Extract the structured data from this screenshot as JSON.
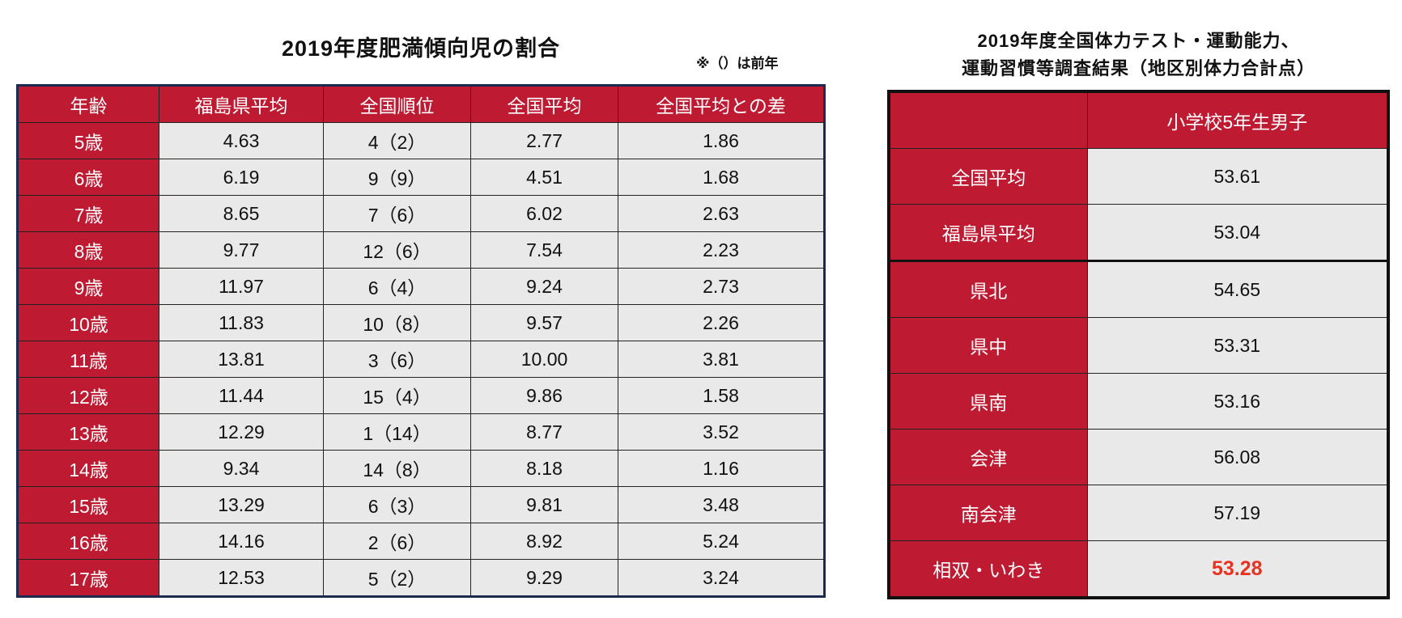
{
  "obesity": {
    "title": "2019年度肥満傾向児の割合",
    "note": "※（）は前年",
    "headers": [
      "年齢",
      "福島県平均",
      "全国順位",
      "全国平均",
      "全国平均との差"
    ],
    "rows": [
      [
        "5歳",
        "4.63",
        "4（2）",
        "2.77",
        "1.86"
      ],
      [
        "6歳",
        "6.19",
        "9（9）",
        "4.51",
        "1.68"
      ],
      [
        "7歳",
        "8.65",
        "7（6）",
        "6.02",
        "2.63"
      ],
      [
        "8歳",
        "9.77",
        "12（6）",
        "7.54",
        "2.23"
      ],
      [
        "9歳",
        "11.97",
        "6（4）",
        "9.24",
        "2.73"
      ],
      [
        "10歳",
        "11.83",
        "10（8）",
        "9.57",
        "2.26"
      ],
      [
        "11歳",
        "13.81",
        "3（6）",
        "10.00",
        "3.81"
      ],
      [
        "12歳",
        "11.44",
        "15（4）",
        "9.86",
        "1.58"
      ],
      [
        "13歳",
        "12.29",
        "1（14）",
        "8.77",
        "3.52"
      ],
      [
        "14歳",
        "9.34",
        "14（8）",
        "8.18",
        "1.16"
      ],
      [
        "15歳",
        "13.29",
        "6（3）",
        "9.81",
        "3.48"
      ],
      [
        "16歳",
        "14.16",
        "2（6）",
        "8.92",
        "5.24"
      ],
      [
        "17歳",
        "12.53",
        "5（2）",
        "9.29",
        "3.24"
      ]
    ]
  },
  "fitness": {
    "title_line1": "2019年度全国体力テスト・運動能力、",
    "title_line2": "運動習慣等調査結果（地区別体力合計点）",
    "header": "小学校5年生男子",
    "rows": [
      [
        "全国平均",
        "53.61"
      ],
      [
        "福島県平均",
        "53.04"
      ],
      [
        "県北",
        "54.65"
      ],
      [
        "県中",
        "53.31"
      ],
      [
        "県南",
        "53.16"
      ],
      [
        "会津",
        "56.08"
      ],
      [
        "南会津",
        "57.19"
      ],
      [
        "相双・いわき",
        "53.28"
      ]
    ],
    "highlight_color": "#e8321f",
    "header_color": "#be1a32"
  }
}
